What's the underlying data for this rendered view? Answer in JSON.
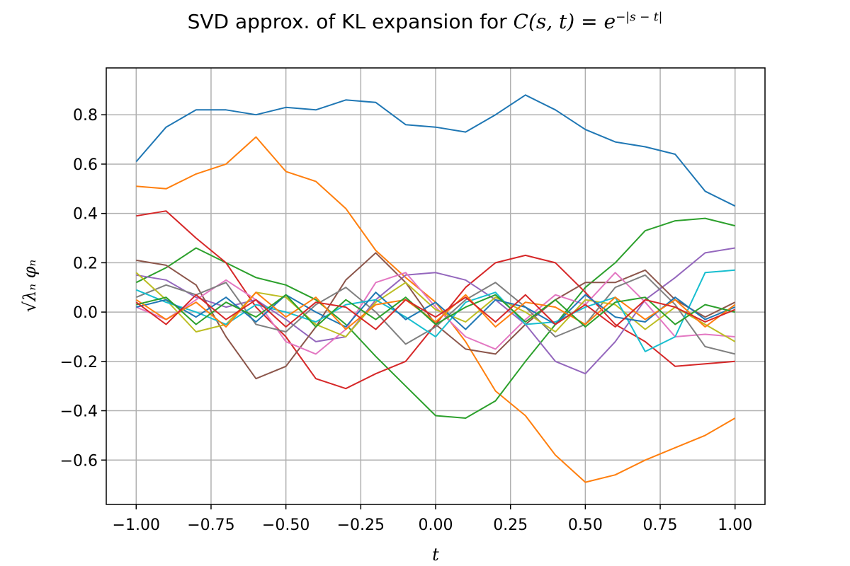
{
  "chart_data": {
    "type": "line",
    "title_prefix": "SVD approx. of KL expansion for ",
    "title_math": "C(s, t) = e",
    "title_exponent": "−|s − t|",
    "xlabel": "t",
    "ylabel": "√λₙ φₙ",
    "xlim": [
      -1.1,
      1.1
    ],
    "ylim": [
      -0.78,
      0.99
    ],
    "grid": true,
    "x_ticks": [
      -1.0,
      -0.75,
      -0.5,
      -0.25,
      0.0,
      0.25,
      0.5,
      0.75,
      1.0
    ],
    "x_tick_labels": [
      "−1.00",
      "−0.75",
      "−0.50",
      "−0.25",
      "0.00",
      "0.25",
      "0.50",
      "0.75",
      "1.00"
    ],
    "y_ticks": [
      -0.6,
      -0.4,
      -0.2,
      0.0,
      0.2,
      0.4,
      0.6,
      0.8
    ],
    "y_tick_labels": [
      "−0.6",
      "−0.4",
      "−0.2",
      "0.0",
      "0.2",
      "0.4",
      "0.6",
      "0.8"
    ],
    "colors": [
      "#1f77b4",
      "#ff7f0e",
      "#2ca02c",
      "#d62728",
      "#9467bd",
      "#8c564b",
      "#e377c2",
      "#7f7f7f",
      "#bcbd22",
      "#17becf"
    ],
    "x": [
      -1.0,
      -0.9,
      -0.8,
      -0.7,
      -0.6,
      -0.5,
      -0.4,
      -0.3,
      -0.2,
      -0.1,
      0.0,
      0.1,
      0.2,
      0.3,
      0.4,
      0.5,
      0.6,
      0.7,
      0.8,
      0.9,
      1.0
    ],
    "series": [
      {
        "values": [
          0.61,
          0.75,
          0.82,
          0.82,
          0.8,
          0.83,
          0.82,
          0.86,
          0.85,
          0.76,
          0.75,
          0.73,
          0.8,
          0.88,
          0.82,
          0.74,
          0.69,
          0.67,
          0.64,
          0.49,
          0.43
        ]
      },
      {
        "values": [
          0.51,
          0.5,
          0.56,
          0.6,
          0.71,
          0.57,
          0.53,
          0.42,
          0.25,
          0.14,
          0.04,
          -0.12,
          -0.32,
          -0.42,
          -0.58,
          -0.69,
          -0.66,
          -0.6,
          -0.55,
          -0.5,
          -0.43
        ]
      },
      {
        "values": [
          0.12,
          0.18,
          0.26,
          0.2,
          0.14,
          0.11,
          0.05,
          -0.05,
          -0.18,
          -0.3,
          -0.42,
          -0.43,
          -0.36,
          -0.2,
          -0.05,
          0.1,
          0.2,
          0.33,
          0.37,
          0.38,
          0.35
        ]
      },
      {
        "values": [
          0.39,
          0.41,
          0.3,
          0.2,
          0.02,
          -0.1,
          -0.27,
          -0.31,
          -0.25,
          -0.2,
          -0.05,
          0.1,
          0.2,
          0.23,
          0.2,
          0.08,
          -0.05,
          -0.12,
          -0.22,
          -0.21,
          -0.2
        ]
      },
      {
        "values": [
          0.15,
          0.13,
          0.06,
          0.02,
          0.05,
          -0.03,
          -0.12,
          -0.1,
          0.05,
          0.15,
          0.16,
          0.13,
          0.05,
          -0.05,
          -0.2,
          -0.25,
          -0.12,
          0.05,
          0.14,
          0.24,
          0.26
        ]
      },
      {
        "values": [
          0.21,
          0.19,
          0.11,
          -0.1,
          -0.27,
          -0.22,
          -0.06,
          0.13,
          0.24,
          0.12,
          -0.05,
          -0.15,
          -0.17,
          -0.05,
          0.05,
          0.12,
          0.12,
          0.17,
          0.05,
          -0.02,
          0.04
        ]
      },
      {
        "values": [
          0.02,
          -0.03,
          0.05,
          0.13,
          0.05,
          -0.12,
          -0.17,
          -0.07,
          0.12,
          0.16,
          0.02,
          -0.1,
          -0.15,
          -0.03,
          0.07,
          0.03,
          0.16,
          0.04,
          -0.1,
          -0.09,
          -0.1
        ]
      },
      {
        "values": [
          0.06,
          0.11,
          0.07,
          0.12,
          -0.05,
          -0.08,
          0.03,
          0.1,
          0.0,
          -0.13,
          -0.06,
          0.05,
          0.12,
          0.02,
          -0.1,
          -0.05,
          0.1,
          0.15,
          0.03,
          -0.14,
          -0.17
        ]
      },
      {
        "values": [
          0.16,
          0.05,
          -0.08,
          -0.05,
          0.08,
          0.06,
          -0.05,
          -0.1,
          0.04,
          0.12,
          0.01,
          -0.04,
          0.06,
          0.0,
          -0.08,
          0.05,
          0.03,
          -0.07,
          0.02,
          -0.05,
          -0.12
        ]
      },
      {
        "values": [
          0.09,
          0.04,
          0.0,
          -0.05,
          0.03,
          0.0,
          -0.04,
          0.03,
          0.05,
          -0.02,
          -0.1,
          0.04,
          0.08,
          -0.05,
          -0.04,
          0.02,
          0.06,
          -0.16,
          -0.1,
          0.16,
          0.17
        ]
      },
      {
        "values": [
          0.02,
          0.05,
          -0.02,
          0.06,
          -0.04,
          0.07,
          0.0,
          -0.06,
          0.08,
          -0.03,
          0.04,
          -0.07,
          0.05,
          0.02,
          -0.05,
          0.07,
          -0.02,
          -0.04,
          0.06,
          -0.03,
          0.02
        ]
      },
      {
        "values": [
          0.05,
          -0.03,
          0.04,
          -0.06,
          0.08,
          -0.02,
          0.06,
          -0.07,
          0.03,
          0.05,
          -0.04,
          0.07,
          -0.06,
          0.04,
          0.02,
          -0.05,
          0.06,
          -0.03,
          0.05,
          -0.06,
          0.03
        ]
      },
      {
        "values": [
          0.03,
          0.06,
          -0.05,
          0.04,
          -0.02,
          0.07,
          -0.06,
          0.05,
          -0.03,
          0.06,
          -0.05,
          0.02,
          0.07,
          -0.04,
          0.05,
          -0.06,
          0.04,
          0.06,
          -0.05,
          0.03,
          0.0
        ]
      },
      {
        "values": [
          0.04,
          -0.05,
          0.07,
          -0.03,
          0.05,
          -0.06,
          0.04,
          0.02,
          -0.07,
          0.05,
          -0.02,
          0.06,
          -0.04,
          0.07,
          -0.05,
          0.03,
          -0.06,
          0.05,
          0.02,
          -0.04,
          0.01
        ]
      }
    ]
  }
}
